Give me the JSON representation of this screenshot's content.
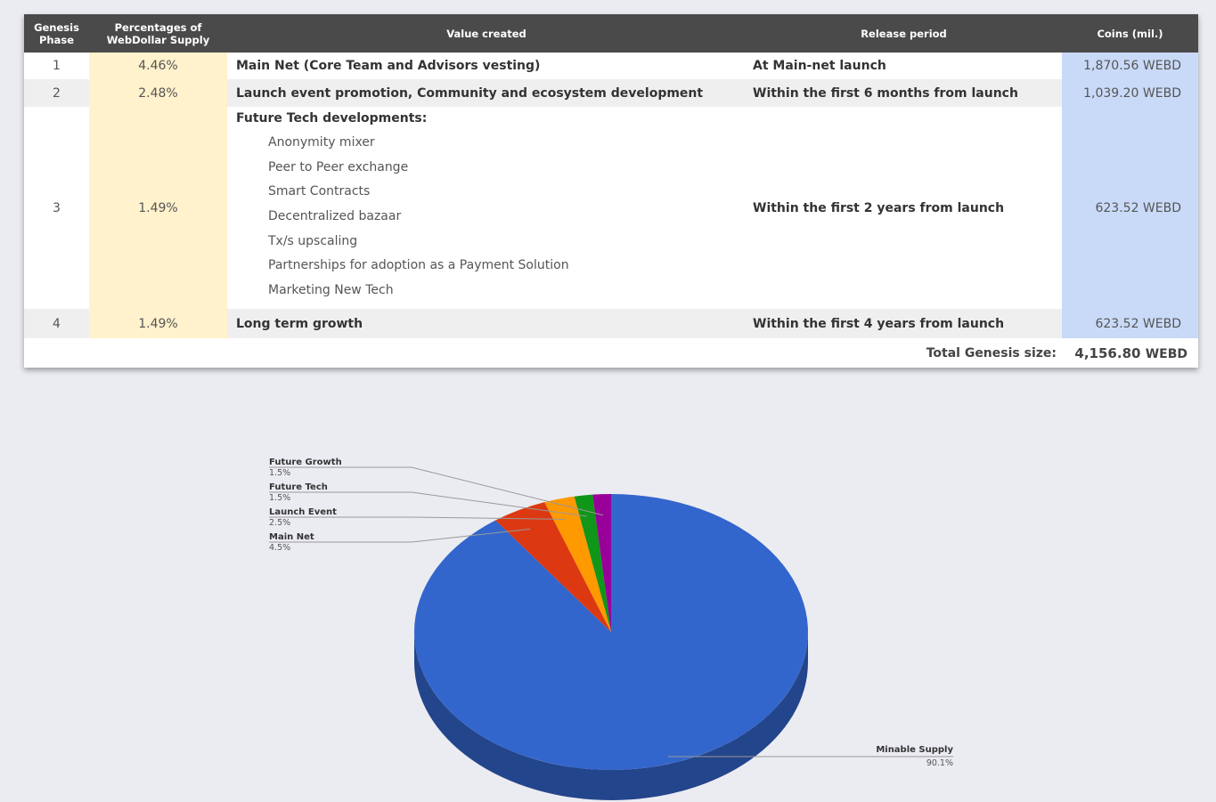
{
  "table": {
    "headers": {
      "phase": "Genesis Phase",
      "percent": "Percentages of WebDollar Supply",
      "value": "Value created",
      "release": "Release period",
      "coins": "Coins (mil.)"
    },
    "rows": [
      {
        "phase": "1",
        "percent": "4.46%",
        "value": "Main Net (Core Team and Advisors vesting)",
        "release": "At Main-net launch",
        "coins": "1,870.56 WEBD"
      },
      {
        "phase": "2",
        "percent": "2.48%",
        "value": "Launch event promotion, Community and ecosystem development",
        "release": "Within the first 6 months from launch",
        "coins": "1,039.20 WEBD"
      },
      {
        "phase": "3",
        "percent": "1.49%",
        "value": "Future Tech developments:",
        "release": "Within the first 2 years from launch",
        "coins": "623.52 WEBD",
        "sub_items": [
          "Anonymity mixer",
          "Peer to Peer exchange",
          "Smart Contracts",
          "Decentralized bazaar",
          "Tx/s upscaling",
          "Partnerships for adoption as a Payment Solution",
          "Marketing New Tech"
        ]
      },
      {
        "phase": "4",
        "percent": "1.49%",
        "value": "Long term growth",
        "release": "Within the first 4 years from launch",
        "coins": "623.52 WEBD"
      }
    ],
    "total": {
      "label": "Total Genesis size:",
      "amount": "4,156.80",
      "unit": "WEBD"
    },
    "colors": {
      "header": "#4a4a4a",
      "percent_col": "#fff2cc",
      "coins_col": "#c9daf8",
      "alt_row": "#efefef"
    }
  },
  "chart_data": {
    "type": "pie",
    "style": "3d",
    "title": "",
    "slices": [
      {
        "label": "Minable Supply",
        "value": 90.1,
        "display": "90.1%",
        "color": "#3366cc"
      },
      {
        "label": "Main Net",
        "value": 4.5,
        "display": "4.5%",
        "color": "#dc3912"
      },
      {
        "label": "Launch Event",
        "value": 2.5,
        "display": "2.5%",
        "color": "#ff9900"
      },
      {
        "label": "Future Tech",
        "value": 1.5,
        "display": "1.5%",
        "color": "#109618"
      },
      {
        "label": "Future Growth",
        "value": 1.5,
        "display": "1.5%",
        "color": "#990099"
      }
    ],
    "legend": "none",
    "labels": "callouts"
  }
}
